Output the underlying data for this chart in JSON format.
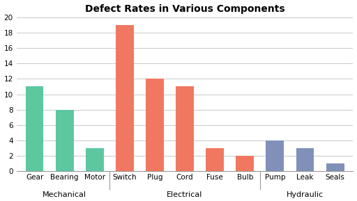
{
  "title": "Defect Rates in Various Components",
  "categories": [
    "Gear",
    "Bearing",
    "Motor",
    "Switch",
    "Plug",
    "Cord",
    "Fuse",
    "Bulb",
    "Pump",
    "Leak",
    "Seals"
  ],
  "values": [
    11,
    8,
    3,
    19,
    12,
    11,
    3,
    2,
    4,
    3,
    1
  ],
  "colors": [
    "#5DC8A0",
    "#5DC8A0",
    "#5DC8A0",
    "#F07860",
    "#F07860",
    "#F07860",
    "#F07860",
    "#F07860",
    "#8090B8",
    "#8090B8",
    "#8090B8"
  ],
  "groups": [
    {
      "label": "Mechanical",
      "start": 0,
      "end": 2
    },
    {
      "label": "Electrical",
      "start": 3,
      "end": 7
    },
    {
      "label": "Hydraulic",
      "start": 8,
      "end": 10
    }
  ],
  "ylim": [
    0,
    20
  ],
  "yticks": [
    0,
    2,
    4,
    6,
    8,
    10,
    12,
    14,
    16,
    18,
    20
  ],
  "bar_width": 0.6,
  "background_color": "#FFFFFF",
  "grid_color": "#C8C8C8",
  "title_fontsize": 10,
  "tick_label_fontsize": 7.5,
  "group_label_fontsize": 8,
  "divider_color": "#999999"
}
